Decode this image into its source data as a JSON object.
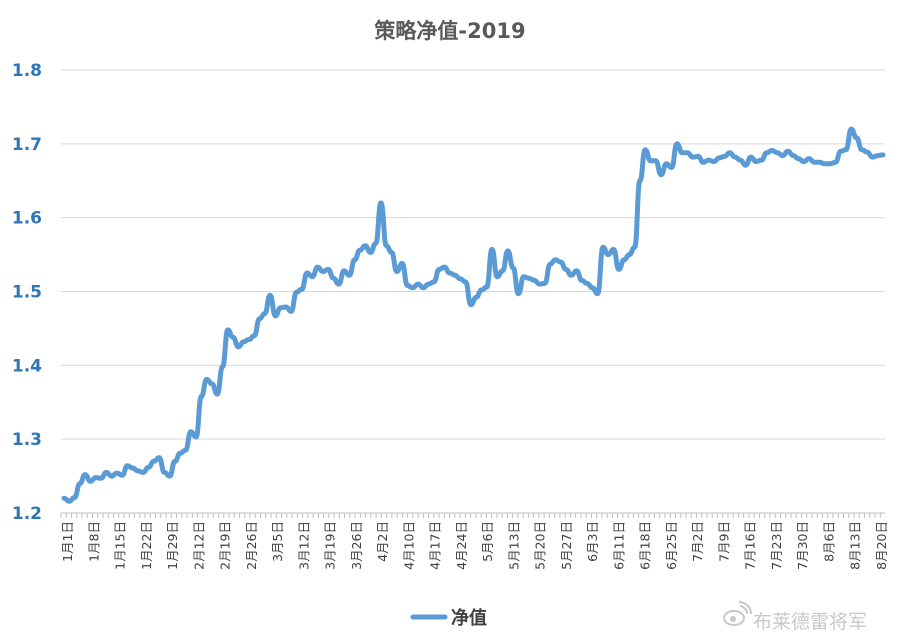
{
  "chart_data": {
    "type": "line",
    "title": "策略净值-2019",
    "xlabel": "",
    "ylabel": "",
    "ylim": [
      1.2,
      1.8
    ],
    "yticks": [
      "1.2",
      "1.3",
      "1.4",
      "1.5",
      "1.6",
      "1.7",
      "1.8"
    ],
    "grid": true,
    "legend": "bottom",
    "x_tick_labels": [
      "1月1日",
      "1月8日",
      "1月15日",
      "1月22日",
      "1月29日",
      "2月12日",
      "2月19日",
      "2月26日",
      "3月5日",
      "3月12日",
      "3月19日",
      "3月26日",
      "4月2日",
      "4月10日",
      "4月17日",
      "4月24日",
      "5月6日",
      "5月13日",
      "5月20日",
      "5月27日",
      "6月3日",
      "6月11日",
      "6月18日",
      "6月25日",
      "7月2日",
      "7月9日",
      "7月16日",
      "7月23日",
      "7月30日",
      "8月6日",
      "8月13日",
      "8月20日"
    ],
    "series": [
      {
        "name": "净值",
        "color": "#5B9BD5",
        "values": [
          1.22,
          1.216,
          1.221,
          1.24,
          1.252,
          1.243,
          1.248,
          1.247,
          1.255,
          1.25,
          1.254,
          1.251,
          1.264,
          1.261,
          1.257,
          1.255,
          1.262,
          1.27,
          1.275,
          1.255,
          1.25,
          1.27,
          1.281,
          1.285,
          1.31,
          1.303,
          1.358,
          1.381,
          1.375,
          1.361,
          1.398,
          1.448,
          1.438,
          1.425,
          1.432,
          1.435,
          1.44,
          1.463,
          1.47,
          1.495,
          1.467,
          1.478,
          1.479,
          1.473,
          1.499,
          1.503,
          1.525,
          1.52,
          1.533,
          1.527,
          1.53,
          1.518,
          1.51,
          1.528,
          1.522,
          1.543,
          1.556,
          1.562,
          1.553,
          1.565,
          1.62,
          1.562,
          1.553,
          1.527,
          1.538,
          1.508,
          1.505,
          1.51,
          1.505,
          1.51,
          1.513,
          1.53,
          1.533,
          1.525,
          1.522,
          1.517,
          1.513,
          1.482,
          1.492,
          1.502,
          1.506,
          1.557,
          1.52,
          1.528,
          1.555,
          1.532,
          1.497,
          1.52,
          1.518,
          1.515,
          1.51,
          1.511,
          1.537,
          1.543,
          1.54,
          1.53,
          1.522,
          1.528,
          1.515,
          1.511,
          1.505,
          1.497,
          1.56,
          1.55,
          1.557,
          1.53,
          1.543,
          1.55,
          1.56,
          1.65,
          1.692,
          1.677,
          1.677,
          1.658,
          1.673,
          1.668,
          1.7,
          1.688,
          1.688,
          1.682,
          1.683,
          1.675,
          1.678,
          1.676,
          1.681,
          1.683,
          1.688,
          1.682,
          1.678,
          1.671,
          1.682,
          1.676,
          1.678,
          1.688,
          1.691,
          1.688,
          1.684,
          1.69,
          1.684,
          1.68,
          1.676,
          1.68,
          1.675,
          1.675,
          1.673,
          1.673,
          1.675,
          1.69,
          1.692,
          1.72,
          1.708,
          1.692,
          1.689,
          1.682,
          1.684,
          1.685
        ]
      }
    ]
  },
  "watermark": {
    "icon": "weibo-icon",
    "text": "布莱德雷将军"
  }
}
